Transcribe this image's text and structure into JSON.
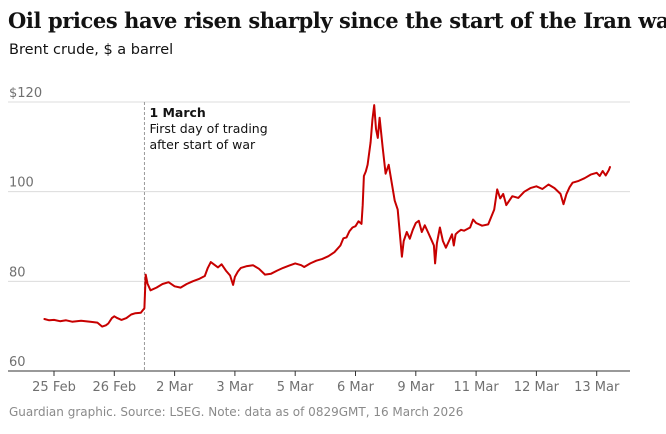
{
  "header": {
    "title": "Oil prices have risen sharply since the start of the Iran war",
    "subtitle": "Brent crude, $ a barrel"
  },
  "footer": {
    "source": "Guardian graphic. Source: LSEG. Note: data as of 0829GMT, 16 March 2026"
  },
  "colors": {
    "series": "#c70000",
    "grid": "#dcdcdc",
    "annotation_line": "#9a9a9a",
    "tick_text": "#707070"
  },
  "chart_data": {
    "type": "line",
    "title": "Oil prices have risen sharply since the start of the Iran war",
    "subtitle": "Brent crude, $ a barrel",
    "xlabel": "",
    "ylabel": "",
    "ylim": [
      60,
      120
    ],
    "y_ticks": [
      {
        "value": 120,
        "label": "$120"
      },
      {
        "value": 100,
        "label": "100"
      },
      {
        "value": 80,
        "label": "80"
      },
      {
        "value": 60,
        "label": "60"
      }
    ],
    "x_ticks": [
      {
        "index": 0,
        "label": "25 Feb"
      },
      {
        "index": 1,
        "label": "26 Feb"
      },
      {
        "index": 2,
        "label": "2 Mar"
      },
      {
        "index": 3,
        "label": "3 Mar"
      },
      {
        "index": 4,
        "label": "5 Mar"
      },
      {
        "index": 5,
        "label": "6 Mar"
      },
      {
        "index": 6,
        "label": "9 Mar"
      },
      {
        "index": 7,
        "label": "11 Mar"
      },
      {
        "index": 8,
        "label": "12 Mar"
      },
      {
        "index": 9,
        "label": "13 Mar"
      }
    ],
    "grid": true,
    "legend": "none",
    "annotation": {
      "x": 1.5,
      "date": "1 March",
      "lines": [
        "First day of trading",
        "after start of war"
      ]
    },
    "series": [
      {
        "points": [
          [
            -0.16,
            71.6
          ],
          [
            -0.08,
            71.3
          ],
          [
            0.0,
            71.4
          ],
          [
            0.1,
            71.1
          ],
          [
            0.2,
            71.3
          ],
          [
            0.3,
            71.0
          ],
          [
            0.45,
            71.2
          ],
          [
            0.6,
            71.0
          ],
          [
            0.72,
            70.8
          ],
          [
            0.8,
            69.9
          ],
          [
            0.86,
            70.2
          ],
          [
            0.9,
            70.6
          ],
          [
            0.96,
            71.8
          ],
          [
            1.0,
            72.2
          ],
          [
            1.05,
            71.8
          ],
          [
            1.12,
            71.4
          ],
          [
            1.2,
            71.8
          ],
          [
            1.28,
            72.6
          ],
          [
            1.35,
            72.9
          ],
          [
            1.44,
            73.0
          ],
          [
            1.5,
            74.0
          ],
          [
            1.52,
            81.5
          ],
          [
            1.55,
            79.5
          ],
          [
            1.6,
            78.0
          ],
          [
            1.7,
            78.6
          ],
          [
            1.8,
            79.4
          ],
          [
            1.9,
            79.8
          ],
          [
            2.0,
            78.9
          ],
          [
            2.1,
            78.6
          ],
          [
            2.2,
            79.4
          ],
          [
            2.3,
            80.0
          ],
          [
            2.4,
            80.5
          ],
          [
            2.5,
            81.2
          ],
          [
            2.55,
            83.0
          ],
          [
            2.6,
            84.3
          ],
          [
            2.65,
            83.8
          ],
          [
            2.72,
            83.1
          ],
          [
            2.78,
            83.8
          ],
          [
            2.85,
            82.4
          ],
          [
            2.92,
            81.3
          ],
          [
            2.97,
            79.2
          ],
          [
            3.0,
            81.0
          ],
          [
            3.05,
            82.2
          ],
          [
            3.1,
            83.0
          ],
          [
            3.2,
            83.4
          ],
          [
            3.3,
            83.6
          ],
          [
            3.4,
            82.8
          ],
          [
            3.5,
            81.5
          ],
          [
            3.6,
            81.7
          ],
          [
            3.7,
            82.4
          ],
          [
            3.8,
            83.0
          ],
          [
            3.9,
            83.5
          ],
          [
            4.0,
            84.0
          ],
          [
            4.1,
            83.6
          ],
          [
            4.15,
            83.2
          ],
          [
            4.25,
            84.0
          ],
          [
            4.35,
            84.6
          ],
          [
            4.45,
            85.0
          ],
          [
            4.55,
            85.6
          ],
          [
            4.65,
            86.5
          ],
          [
            4.75,
            88.0
          ],
          [
            4.8,
            89.6
          ],
          [
            4.85,
            89.8
          ],
          [
            4.9,
            91.2
          ],
          [
            4.95,
            92.0
          ],
          [
            5.0,
            92.3
          ],
          [
            5.05,
            93.4
          ],
          [
            5.1,
            92.8
          ],
          [
            5.12,
            97.0
          ],
          [
            5.14,
            103.5
          ],
          [
            5.17,
            104.5
          ],
          [
            5.2,
            106.0
          ],
          [
            5.25,
            111.0
          ],
          [
            5.28,
            116.0
          ],
          [
            5.31,
            119.3
          ],
          [
            5.34,
            114.0
          ],
          [
            5.37,
            112.0
          ],
          [
            5.4,
            116.5
          ],
          [
            5.45,
            110.0
          ],
          [
            5.5,
            104.0
          ],
          [
            5.55,
            106.0
          ],
          [
            5.6,
            102.0
          ],
          [
            5.65,
            98.0
          ],
          [
            5.7,
            96.0
          ],
          [
            5.74,
            90.0
          ],
          [
            5.77,
            85.5
          ],
          [
            5.8,
            89.0
          ],
          [
            5.85,
            91.0
          ],
          [
            5.9,
            89.5
          ],
          [
            5.95,
            91.5
          ],
          [
            6.0,
            93.0
          ],
          [
            6.05,
            93.5
          ],
          [
            6.1,
            91.0
          ],
          [
            6.15,
            92.5
          ],
          [
            6.2,
            91.0
          ],
          [
            6.25,
            89.5
          ],
          [
            6.3,
            88.0
          ],
          [
            6.32,
            84.0
          ],
          [
            6.35,
            88.5
          ],
          [
            6.4,
            92.0
          ],
          [
            6.45,
            89.0
          ],
          [
            6.5,
            87.5
          ],
          [
            6.55,
            89.0
          ],
          [
            6.6,
            90.5
          ],
          [
            6.63,
            88.0
          ],
          [
            6.66,
            90.5
          ],
          [
            6.7,
            91.0
          ],
          [
            6.75,
            91.5
          ],
          [
            6.8,
            91.3
          ],
          [
            6.9,
            92.0
          ],
          [
            6.95,
            93.8
          ],
          [
            7.0,
            93.0
          ],
          [
            7.1,
            92.4
          ],
          [
            7.2,
            92.7
          ],
          [
            7.3,
            96.0
          ],
          [
            7.35,
            100.5
          ],
          [
            7.4,
            98.5
          ],
          [
            7.45,
            99.5
          ],
          [
            7.5,
            97.0
          ],
          [
            7.6,
            99.0
          ],
          [
            7.7,
            98.6
          ],
          [
            7.8,
            100.0
          ],
          [
            7.9,
            100.8
          ],
          [
            8.0,
            101.2
          ],
          [
            8.1,
            100.6
          ],
          [
            8.2,
            101.6
          ],
          [
            8.3,
            100.8
          ],
          [
            8.4,
            99.5
          ],
          [
            8.45,
            97.2
          ],
          [
            8.5,
            99.5
          ],
          [
            8.55,
            101.0
          ],
          [
            8.6,
            102.0
          ],
          [
            8.7,
            102.4
          ],
          [
            8.8,
            103.0
          ],
          [
            8.9,
            103.8
          ],
          [
            9.0,
            104.2
          ],
          [
            9.05,
            103.5
          ],
          [
            9.1,
            104.6
          ],
          [
            9.15,
            103.6
          ],
          [
            9.2,
            104.8
          ],
          [
            9.22,
            105.5
          ]
        ]
      }
    ]
  }
}
